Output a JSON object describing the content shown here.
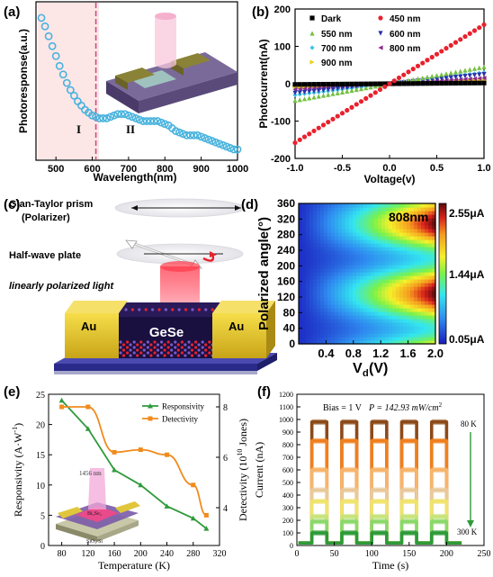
{
  "chart_data": [
    {
      "panel": "(a)",
      "type": "line",
      "xlabel": "Wavelength(nm)",
      "ylabel": "Photoresponse(a.u.)",
      "xlim": [
        450,
        1000
      ],
      "xticks": [
        500,
        600,
        700,
        800,
        900,
        1000
      ],
      "region_divider": 610,
      "region_labels": [
        "I",
        "II"
      ],
      "series": [
        {
          "color": "#48b3de",
          "x": [
            460,
            470,
            480,
            490,
            500,
            510,
            520,
            530,
            540,
            550,
            560,
            570,
            580,
            590,
            600,
            610,
            620,
            630,
            640,
            650,
            660,
            670,
            680,
            690,
            700,
            710,
            720,
            730,
            740,
            750,
            760,
            770,
            780,
            790,
            800,
            810,
            820,
            830,
            840,
            850,
            860,
            870,
            880,
            890,
            900,
            910,
            920,
            930,
            940,
            950,
            960,
            970,
            980,
            990,
            1000
          ],
          "y": [
            1.0,
            0.94,
            0.87,
            0.8,
            0.73,
            0.66,
            0.6,
            0.54,
            0.49,
            0.45,
            0.41,
            0.38,
            0.35,
            0.33,
            0.31,
            0.3,
            0.29,
            0.29,
            0.29,
            0.3,
            0.31,
            0.32,
            0.32,
            0.32,
            0.31,
            0.3,
            0.29,
            0.28,
            0.27,
            0.27,
            0.27,
            0.27,
            0.27,
            0.26,
            0.25,
            0.24,
            0.22,
            0.2,
            0.19,
            0.18,
            0.17,
            0.17,
            0.17,
            0.17,
            0.16,
            0.15,
            0.14,
            0.13,
            0.12,
            0.11,
            0.1,
            0.09,
            0.08,
            0.07,
            0.07
          ]
        }
      ]
    },
    {
      "panel": "(b)",
      "type": "scatter",
      "xlabel": "Voltage(v)",
      "ylabel": "Photocurrent(nA)",
      "xlim": [
        -1.0,
        1.0
      ],
      "ylim": [
        -200,
        200
      ],
      "xticks": [
        "-1.0",
        "-0.5",
        "0.0",
        "0.5",
        "1.0"
      ],
      "yticks": [
        -200,
        -100,
        0,
        100,
        200
      ],
      "series": [
        {
          "name": "Dark",
          "color": "#000000",
          "marker": "square",
          "slope": 2
        },
        {
          "name": "450 nm",
          "color": "#e8222e",
          "marker": "circle",
          "slope": 158
        },
        {
          "name": "550 nm",
          "color": "#76c043",
          "marker": "triangle-up",
          "slope": 45
        },
        {
          "name": "600 nm",
          "color": "#2b2fa8",
          "marker": "triangle-down",
          "slope": 25
        },
        {
          "name": "700 nm",
          "color": "#3fc3e6",
          "marker": "diamond",
          "slope": 30
        },
        {
          "name": "800 nm",
          "color": "#8b2a8b",
          "marker": "triangle-left",
          "slope": 15
        },
        {
          "name": "900 nm",
          "color": "#e8d21c",
          "marker": "triangle-right",
          "slope": 8
        }
      ]
    },
    {
      "panel": "(d)",
      "type": "heatmap",
      "xlabel": "V",
      "xlabel_sub": "d",
      "xlabel_unit": "(V)",
      "ylabel": "Polarized angle(°)",
      "xlim": [
        0.0,
        2.0
      ],
      "ylim": [
        0,
        360
      ],
      "xticks": [
        "0.4",
        "0.8",
        "1.2",
        "1.6",
        "2.0"
      ],
      "yticks": [
        0,
        40,
        80,
        120,
        160,
        200,
        240,
        280,
        320,
        360
      ],
      "colorbar_labels": [
        "2.55μA",
        "1.44μA",
        "0.05μA"
      ],
      "annotation": "808nm"
    },
    {
      "panel": "(e)",
      "type": "line",
      "xlabel": "Temperature (K)",
      "ylabel_left": "Responsivity (A·W",
      "ylabel_left_sup": "-1",
      "ylabel_left_end": ")",
      "ylabel_right": "Detectivity (10",
      "ylabel_right_sup": "10",
      "ylabel_right_end": " Jones)",
      "xlim": [
        60,
        320
      ],
      "xticks": [
        80,
        120,
        160,
        200,
        240,
        280,
        320
      ],
      "ylim_left": [
        0,
        25
      ],
      "yticks_left": [
        0,
        5,
        10,
        15,
        20,
        25
      ],
      "ylim_right": [
        2.5,
        8.5
      ],
      "yticks_right": [
        4,
        6,
        8
      ],
      "series": [
        {
          "name": "Responsivity",
          "color": "#2f9a3c",
          "axis": "left",
          "x": [
            80,
            120,
            160,
            200,
            240,
            280,
            300
          ],
          "y": [
            24,
            19.3,
            12.5,
            10,
            6.5,
            4.5,
            2.8
          ]
        },
        {
          "name": "Detectivity",
          "color": "#f08b1e",
          "axis": "right",
          "x": [
            80,
            120,
            160,
            200,
            240,
            280,
            300
          ],
          "y": [
            8,
            8,
            6.2,
            6.3,
            6.1,
            4.9,
            3.7
          ]
        }
      ],
      "inset": {
        "wavelength": "1456 nm",
        "material": "Bi₂Se₃",
        "substrate": "SiO₂/Si"
      }
    },
    {
      "panel": "(f)",
      "type": "line",
      "xlabel": "Time (s)",
      "ylabel": "Current (nA)",
      "xlim": [
        0,
        250
      ],
      "ylim": [
        0,
        1200
      ],
      "xticks": [
        0,
        50,
        100,
        150,
        200,
        250
      ],
      "yticks": [
        0,
        100,
        200,
        300,
        400,
        500,
        600,
        700,
        800,
        900,
        1000,
        1100,
        1200
      ],
      "annotation_bias": "Bias = 1 V",
      "annotation_p": "P = 142.93 mW/cm",
      "annotation_p_sup": "2",
      "label_top": "80 K",
      "label_bottom": "300 K",
      "pulses_on": [
        [
          20,
          40
        ],
        [
          60,
          80
        ],
        [
          100,
          120
        ],
        [
          140,
          160
        ],
        [
          180,
          200
        ]
      ],
      "dark_level": 20,
      "series": [
        {
          "color": "#8c4a1a",
          "on": 980
        },
        {
          "color": "#f07f1e",
          "on": 830
        },
        {
          "color": "#f7b46a",
          "on": 600
        },
        {
          "color": "#e9c99a",
          "on": 440
        },
        {
          "color": "#f0e36a",
          "on": 350
        },
        {
          "color": "#c8e37a",
          "on": 230
        },
        {
          "color": "#8bd86a",
          "on": 190
        },
        {
          "color": "#2e9a38",
          "on": 100
        }
      ]
    }
  ],
  "panels": {
    "a_label": "(a)",
    "b_label": "(b)",
    "c_label": "(c)",
    "d_label": "(d)",
    "e_label": "(e)",
    "f_label": "(f)"
  },
  "schematic_c": {
    "polarizer_line1": "Glan-Taylor prism",
    "polarizer_line2": "(Polarizer)",
    "halfwave": "Half-wave plate",
    "light": "linearly polarized light",
    "electrode_left": "Au",
    "electrode_right": "Au",
    "channel": "GeSe"
  }
}
